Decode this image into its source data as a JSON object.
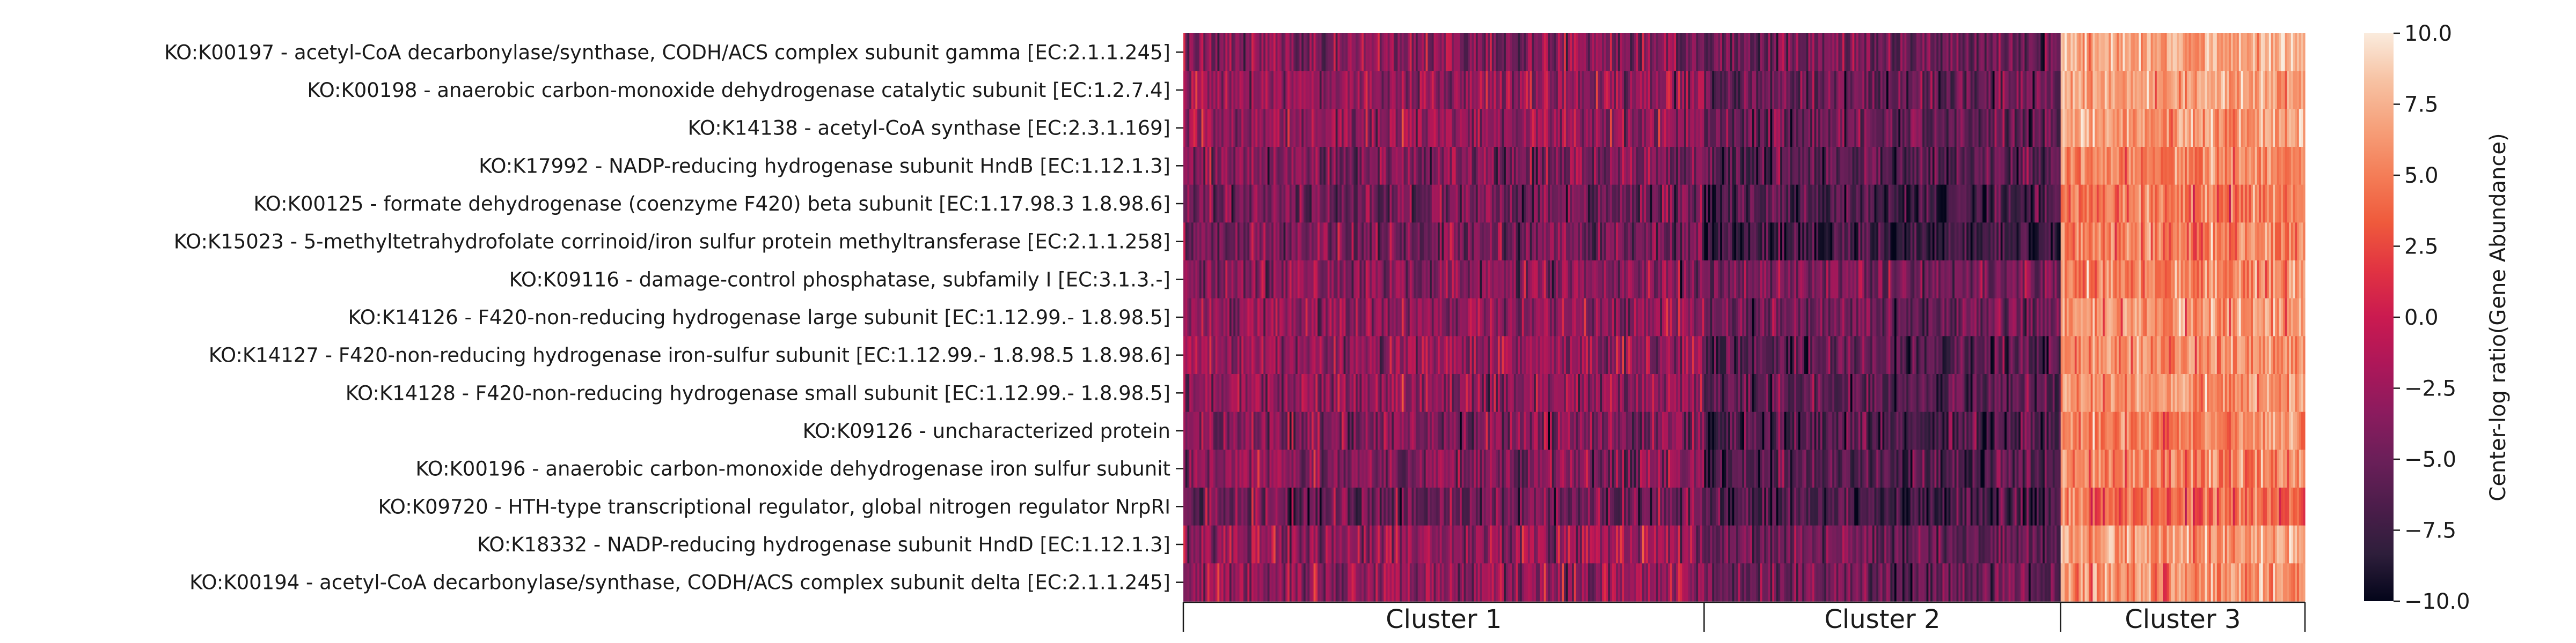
{
  "chart_data": {
    "type": "heatmap",
    "title": "",
    "rows": [
      "KO:K00197 - acetyl-CoA decarbonylase/synthase, CODH/ACS complex subunit gamma [EC:2.1.1.245]",
      "KO:K00198 - anaerobic carbon-monoxide dehydrogenase catalytic subunit [EC:1.2.7.4]",
      "KO:K14138 - acetyl-CoA synthase [EC:2.3.1.169]",
      "KO:K17992 - NADP-reducing hydrogenase subunit HndB [EC:1.12.1.3]",
      "KO:K00125 - formate dehydrogenase (coenzyme F420) beta subunit [EC:1.17.98.3 1.8.98.6]",
      "KO:K15023 - 5-methyltetrahydrofolate corrinoid/iron sulfur protein methyltransferase [EC:2.1.1.258]",
      "KO:K09116 - damage-control phosphatase, subfamily I [EC:3.1.3.-]",
      "KO:K14126 - F420-non-reducing hydrogenase large subunit [EC:1.12.99.- 1.8.98.5]",
      "KO:K14127 - F420-non-reducing hydrogenase iron-sulfur subunit [EC:1.12.99.- 1.8.98.5 1.8.98.6]",
      "KO:K14128 - F420-non-reducing hydrogenase small subunit [EC:1.12.99.- 1.8.98.5]",
      "KO:K09126 - uncharacterized protein",
      "KO:K00196 - anaerobic carbon-monoxide dehydrogenase iron sulfur subunit",
      "KO:K09720 - HTH-type transcriptional regulator, global nitrogen regulator NrpRI",
      "KO:K18332 - NADP-reducing hydrogenase subunit HndD [EC:1.12.1.3]",
      "KO:K00194 - acetyl-CoA decarbonylase/synthase, CODH/ACS complex subunit delta [EC:2.1.1.245]"
    ],
    "clusters": [
      {
        "name": "Cluster 1",
        "fraction": 0.465,
        "mean": -3.6,
        "spread": 3.6
      },
      {
        "name": "Cluster 2",
        "fraction": 0.317,
        "mean": -5.6,
        "spread": 3.2
      },
      {
        "name": "Cluster 3",
        "fraction": 0.218,
        "mean": 5.5,
        "spread": 2.6
      }
    ],
    "row_offsets": {
      "cluster_1": [
        0.2,
        0.6,
        0.5,
        -0.6,
        -1.2,
        -0.8,
        0.0,
        0.6,
        0.8,
        0.6,
        -0.4,
        0.0,
        -1.3,
        0.9,
        0.7
      ],
      "cluster_2": [
        0.6,
        0.3,
        0.2,
        -0.5,
        -1.2,
        -1.8,
        1.3,
        0.5,
        -0.6,
        -0.4,
        -0.8,
        -0.7,
        -1.4,
        0.2,
        0.4
      ],
      "cluster_3": [
        1.6,
        1.2,
        1.0,
        0.0,
        -0.6,
        -0.4,
        -0.2,
        0.4,
        0.3,
        0.4,
        -0.2,
        -0.2,
        -1.6,
        1.2,
        0.4
      ]
    },
    "columns_per_row": 560,
    "colorbar": {
      "label": "Center-log ratio(Gene Abundance)",
      "vmin": -10,
      "vmax": 10,
      "ticks": [
        10.0,
        7.5,
        5.0,
        2.5,
        0.0,
        -2.5,
        -5.0,
        -7.5,
        -10.0
      ],
      "tick_labels": [
        "10.0",
        "7.5",
        "5.0",
        "2.5",
        "0.0",
        "−2.5",
        "−5.0",
        "−7.5",
        "−10.0"
      ],
      "colormap": "rocket",
      "colormap_stops": [
        "#03051a",
        "#2e1e3b",
        "#4c1d4b",
        "#6b1f59",
        "#8c1b5e",
        "#ad1759",
        "#ca1a50",
        "#e13342",
        "#ef5a3c",
        "#f47d57",
        "#f6a07a",
        "#f7c2a3",
        "#faebdd"
      ]
    }
  }
}
